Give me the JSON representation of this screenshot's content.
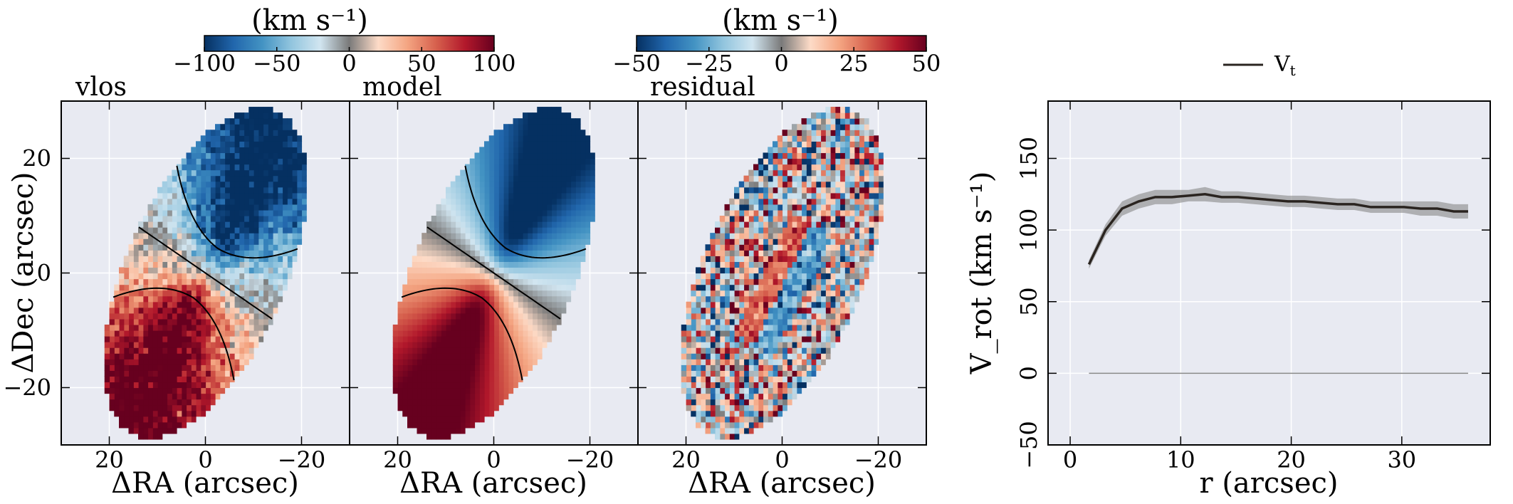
{
  "colors": {
    "panel_background": "#e8eaf2",
    "grid": "#ffffff",
    "rotation_curve": "#2a2420",
    "rotation_band": "#7d7d7d",
    "colormap": [
      "#053061",
      "#2166ac",
      "#4393c3",
      "#92c5de",
      "#d1e5f0",
      "#7a7a7a",
      "#fddbc7",
      "#f4a582",
      "#d6604d",
      "#b2182b",
      "#67001f"
    ]
  },
  "chart_data": [
    {
      "type": "heatmap",
      "title": "vlos",
      "xlabel": "ΔRA (arcsec)",
      "ylabel": "ΔDec (arcsec)",
      "xlim": [
        30,
        -30
      ],
      "ylim": [
        -30,
        30
      ],
      "xticks": [
        20,
        0,
        -20
      ],
      "yticks": [
        20,
        0,
        -20
      ],
      "xtick_labels": [
        "20",
        "0",
        "−20"
      ],
      "ytick_labels": [
        "20",
        "0",
        "−20"
      ],
      "colorbar": {
        "label": "(km s⁻¹)",
        "range": [
          -100,
          100
        ],
        "ticks": [
          -100,
          -50,
          0,
          50,
          100
        ],
        "tick_labels": [
          "−100",
          "−50",
          "0",
          "50",
          "100"
        ]
      },
      "disk": {
        "semi_major_arcsec": 32,
        "semi_minor_arcsec": 16,
        "major_axis_pa_deg": 150,
        "vmax_kms": 125,
        "noise_kms": 12
      },
      "contours_kms": [
        -60,
        0,
        60
      ]
    },
    {
      "type": "heatmap",
      "title": "model",
      "xlabel": "ΔRA (arcsec)",
      "xlim": [
        30,
        -30
      ],
      "ylim": [
        -30,
        30
      ],
      "xticks": [
        20,
        0,
        -20
      ],
      "xtick_labels": [
        "20",
        "0",
        "−20"
      ],
      "disk": {
        "semi_major_arcsec": 32,
        "semi_minor_arcsec": 16,
        "major_axis_pa_deg": 150,
        "vmax_kms": 125,
        "noise_kms": 0
      },
      "contours_kms": [
        -60,
        0,
        60
      ]
    },
    {
      "type": "heatmap",
      "title": "residual",
      "xlabel": "ΔRA (arcsec)",
      "xlim": [
        30,
        -30
      ],
      "ylim": [
        -30,
        30
      ],
      "xticks": [
        20,
        0,
        -20
      ],
      "xtick_labels": [
        "20",
        "0",
        "−20"
      ],
      "colorbar": {
        "label": "(km s⁻¹)",
        "range": [
          -50,
          50
        ],
        "ticks": [
          -50,
          -25,
          0,
          25,
          50
        ],
        "tick_labels": [
          "−50",
          "−25",
          "0",
          "25",
          "50"
        ]
      },
      "disk": {
        "semi_major_arcsec": 32,
        "semi_minor_arcsec": 16,
        "major_axis_pa_deg": 150,
        "noise_kms": 28
      },
      "residual_feature": {
        "center_arcsec": [
          0,
          -2
        ],
        "length_arcsec": 24,
        "width_arcsec": 9,
        "amplitude_kms": 30
      }
    },
    {
      "type": "line",
      "xlabel": "r (arcsec)",
      "ylabel": "V_rot (km s⁻¹)",
      "xlim": [
        -2,
        38
      ],
      "ylim": [
        -50,
        190
      ],
      "xticks": [
        0,
        10,
        20,
        30
      ],
      "yticks": [
        -50,
        0,
        50,
        100,
        150
      ],
      "xtick_labels": [
        "0",
        "10",
        "20",
        "30"
      ],
      "ytick_labels": [
        "−50",
        "0",
        "50",
        "100",
        "150"
      ],
      "legend": {
        "label": "V",
        "subscript": "t",
        "position": "top-center"
      },
      "zero_line": true,
      "series": [
        {
          "name": "Vt",
          "x": [
            1.7,
            3.2,
            4.7,
            6.2,
            7.7,
            9.2,
            10.7,
            12.2,
            13.7,
            15.2,
            16.7,
            18.2,
            19.7,
            21.2,
            22.7,
            24.2,
            25.7,
            27.2,
            28.7,
            30.2,
            31.7,
            33.2,
            34.7,
            36.0
          ],
          "y": [
            76,
            100,
            115,
            120,
            123,
            123,
            124,
            125,
            123,
            123,
            122,
            121,
            120,
            120,
            119,
            118,
            118,
            116,
            116,
            116,
            115,
            115,
            113,
            113
          ],
          "err": [
            3,
            4,
            5,
            5,
            5,
            5,
            4,
            5,
            4,
            4,
            4,
            4,
            4,
            4,
            4,
            4,
            4,
            4,
            4,
            4,
            5,
            5,
            5,
            5
          ]
        }
      ]
    }
  ]
}
